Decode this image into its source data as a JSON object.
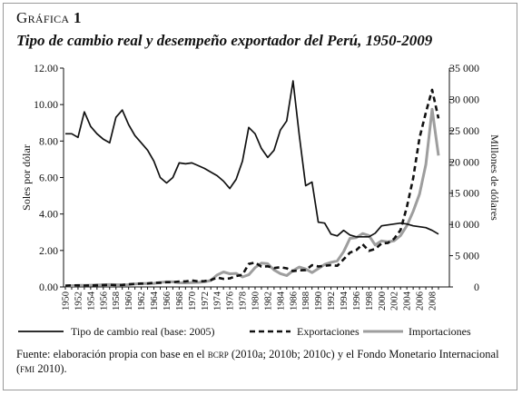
{
  "figure": {
    "label_prefix": "Gráfica",
    "label_number": "1",
    "title": "Tipo de cambio real y desempeño exportador del Perú, 1950-2009",
    "source_prefix": "Fuente: elaboración propia con base en el ",
    "source_bcrp": "bcrp",
    "source_mid": " (2010a; 2010b; 2010c) y el Fondo Monetario Internacional (",
    "source_fmi": "fmi",
    "source_end": " 2010)."
  },
  "chart_data": {
    "type": "line",
    "x": [
      1950,
      1951,
      1952,
      1953,
      1954,
      1955,
      1956,
      1957,
      1958,
      1959,
      1960,
      1961,
      1962,
      1963,
      1964,
      1965,
      1966,
      1967,
      1968,
      1969,
      1970,
      1971,
      1972,
      1973,
      1974,
      1975,
      1976,
      1977,
      1978,
      1979,
      1980,
      1981,
      1982,
      1983,
      1984,
      1985,
      1986,
      1987,
      1988,
      1989,
      1990,
      1991,
      1992,
      1993,
      1994,
      1995,
      1996,
      1997,
      1998,
      1999,
      2000,
      2001,
      2002,
      2003,
      2004,
      2005,
      2006,
      2007,
      2008,
      2009
    ],
    "x_tick_labels": [
      "1950",
      "1952",
      "1954",
      "1956",
      "1958",
      "1960",
      "1962",
      "1964",
      "1966",
      "1968",
      "1970",
      "1972",
      "1974",
      "1976",
      "1978",
      "1980",
      "1982",
      "1984",
      "1986",
      "1988",
      "1990",
      "1992",
      "1994",
      "1996",
      "1998",
      "2000",
      "2002",
      "2004",
      "2006",
      "2008"
    ],
    "y_left": {
      "label": "Soles por dólar",
      "min": 0,
      "max": 12,
      "ticks": [
        "0.00",
        "2.00",
        "4.00",
        "6.00",
        "8.00",
        "10.00",
        "12.00"
      ]
    },
    "y_right": {
      "label": "Millones de dólares",
      "min": 0,
      "max": 35000,
      "ticks": [
        "0",
        "5 000",
        "10 000",
        "15 000",
        "20 000",
        "25 000",
        "30 000",
        "35 000"
      ]
    },
    "series": [
      {
        "name": "Tipo de cambio real (base: 2005)",
        "axis": "left",
        "style": "solid",
        "color": "#111111",
        "values": [
          8.4,
          8.4,
          8.2,
          9.6,
          8.8,
          8.4,
          8.1,
          7.9,
          9.3,
          9.7,
          8.9,
          8.3,
          7.9,
          7.5,
          6.9,
          6.0,
          5.7,
          6.0,
          6.8,
          6.75,
          6.8,
          6.65,
          6.5,
          6.3,
          6.1,
          5.8,
          5.4,
          5.9,
          6.9,
          8.75,
          8.4,
          7.6,
          7.1,
          7.5,
          8.6,
          9.1,
          11.3,
          8.3,
          5.55,
          5.75,
          3.55,
          3.5,
          2.9,
          2.8,
          3.1,
          2.85,
          2.75,
          2.75,
          2.75,
          2.95,
          3.35,
          3.4,
          3.45,
          3.5,
          3.45,
          3.35,
          3.3,
          3.25,
          3.1,
          2.9
        ]
      },
      {
        "name": "Exportaciones",
        "axis": "right",
        "style": "dashed",
        "color": "#111111",
        "values": [
          190,
          250,
          240,
          220,
          250,
          270,
          310,
          330,
          290,
          320,
          430,
          500,
          540,
          550,
          670,
          670,
          760,
          760,
          870,
          880,
          1030,
          890,
          940,
          1110,
          1500,
          1290,
          1360,
          1730,
          1940,
          3680,
          3900,
          3250,
          3290,
          3020,
          3150,
          2980,
          2530,
          2660,
          2700,
          3490,
          3280,
          3390,
          3480,
          3390,
          4420,
          5490,
          5880,
          6830,
          5760,
          6090,
          6950,
          7030,
          7710,
          9090,
          12810,
          17370,
          23830,
          27880,
          31530,
          26960
        ]
      },
      {
        "name": "Importaciones",
        "axis": "right",
        "style": "solid-gray",
        "color": "#9e9e9e",
        "values": [
          180,
          200,
          240,
          260,
          270,
          300,
          350,
          380,
          360,
          330,
          370,
          470,
          540,
          550,
          570,
          730,
          820,
          810,
          670,
          660,
          700,
          730,
          810,
          1030,
          1910,
          2390,
          2100,
          2160,
          1600,
          1950,
          3090,
          3800,
          3720,
          2720,
          2140,
          1810,
          2600,
          3180,
          2870,
          2290,
          2920,
          3600,
          3930,
          4170,
          5640,
          7770,
          7890,
          8540,
          8220,
          6710,
          7360,
          7200,
          7390,
          8200,
          9800,
          12080,
          14840,
          19590,
          28440,
          21010
        ]
      }
    ],
    "legend_position": "bottom",
    "grid": false
  }
}
